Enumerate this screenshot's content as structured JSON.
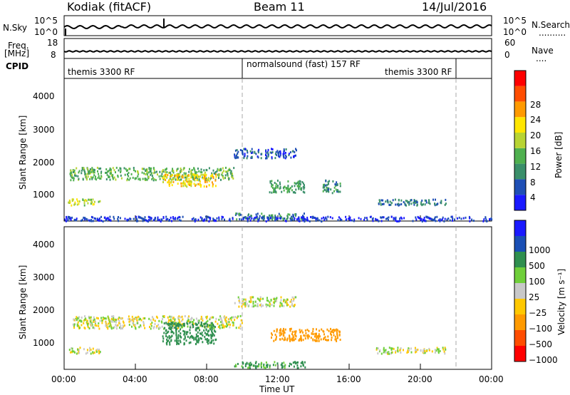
{
  "header": {
    "site": "Kodiak (fitACF)",
    "beam": "Beam 11",
    "date": "14/Jul/2016"
  },
  "side_labels": {
    "nsky": "N.Sky",
    "nsearch": "N.Search",
    "nsearch_dots": "..........",
    "freq": "Freq.",
    "mhz": "[MHz]",
    "nave": "Nave",
    "nave_dots": "....",
    "cpid": "CPID"
  },
  "noise_panel": {
    "left_ticks": [
      "10^5",
      "10^0"
    ],
    "right_ticks": [
      "10^5",
      "10^0"
    ]
  },
  "freq_panel": {
    "left_ticks": [
      "18",
      "8"
    ],
    "right_ticks": [
      "60",
      "0"
    ]
  },
  "cpid_panel": {
    "segments": [
      {
        "label": "themis 3300 RF",
        "start_h": 0,
        "end_h": 10
      },
      {
        "label": "normalsound (fast) 157 RF",
        "start_h": 10,
        "end_h": 22
      },
      {
        "label": "themis 3300 RF",
        "start_h": 22,
        "end_h": 24
      }
    ]
  },
  "x_axis": {
    "label": "Time UT",
    "ticks": [
      "00:00",
      "04:00",
      "08:00",
      "12:00",
      "16:00",
      "20:00",
      "00:00"
    ]
  },
  "colors": {
    "power_scale": [
      "#1a1aff",
      "#1f4fb5",
      "#3a8f6a",
      "#4fb04f",
      "#b8d433",
      "#ffe600",
      "#ff9a00",
      "#ff4d00",
      "#ff0000"
    ],
    "velocity_scale": [
      "#ff0000",
      "#ff4d00",
      "#ff9a00",
      "#ffc800",
      "#c8c8c8",
      "#6fcf3a",
      "#2f8f4f",
      "#1a4fb5",
      "#1a1aff"
    ]
  },
  "chart_data": [
    {
      "type": "heatmap",
      "title": "Power",
      "xlabel": "Time UT",
      "ylabel": "Slant Range [km]",
      "xlim": [
        0,
        24
      ],
      "ylim": [
        180,
        4700
      ],
      "y_ticks": [
        "1000",
        "2000",
        "3000",
        "4000"
      ],
      "colorbar": {
        "label": "Power [dB]",
        "range": [
          0,
          32
        ],
        "ticks": [
          "4",
          "8",
          "12",
          "16",
          "20",
          "24",
          "28"
        ]
      },
      "regions": [
        {
          "t": [
            0.3,
            9.5
          ],
          "r": [
            1500,
            1900
          ],
          "value": 14
        },
        {
          "t": [
            5.5,
            8.5
          ],
          "r": [
            1300,
            1700
          ],
          "value": 22
        },
        {
          "t": [
            0.2,
            2.0
          ],
          "r": [
            700,
            900
          ],
          "value": 18
        },
        {
          "t": [
            9.5,
            13.0
          ],
          "r": [
            2200,
            2500
          ],
          "value": 6
        },
        {
          "t": [
            11.5,
            13.5
          ],
          "r": [
            1100,
            1500
          ],
          "value": 12
        },
        {
          "t": [
            14.5,
            15.5
          ],
          "r": [
            1100,
            1500
          ],
          "value": 10
        },
        {
          "t": [
            17.5,
            21.5
          ],
          "r": [
            700,
            900
          ],
          "value": 8
        },
        {
          "t": [
            9.5,
            13.5
          ],
          "r": [
            250,
            450
          ],
          "value": 10
        },
        {
          "t": [
            0,
            24
          ],
          "r": [
            200,
            350
          ],
          "value": 4
        }
      ]
    },
    {
      "type": "heatmap",
      "title": "Velocity",
      "xlabel": "Time UT",
      "ylabel": "Slant Range [km]",
      "xlim": [
        0,
        24
      ],
      "ylim": [
        180,
        4700
      ],
      "y_ticks": [
        "1000",
        "2000",
        "3000",
        "4000"
      ],
      "colorbar": {
        "label": "Velocity [m s^-1]",
        "ticks": [
          "1000",
          "500",
          "100",
          "25",
          "−25",
          "−100",
          "−500",
          "−1000"
        ]
      },
      "regions": [
        {
          "t": [
            0.3,
            10.0
          ],
          "r": [
            1500,
            1900
          ],
          "value": 0
        },
        {
          "t": [
            5.5,
            8.5
          ],
          "r": [
            1000,
            1700
          ],
          "value": 300
        },
        {
          "t": [
            9.5,
            13.0
          ],
          "r": [
            2200,
            2500
          ],
          "value": 0
        },
        {
          "t": [
            11.5,
            15.5
          ],
          "r": [
            1100,
            1500
          ],
          "value": -300
        },
        {
          "t": [
            0.2,
            2.0
          ],
          "r": [
            700,
            900
          ],
          "value": 0
        },
        {
          "t": [
            17.5,
            21.5
          ],
          "r": [
            700,
            900
          ],
          "value": 0
        },
        {
          "t": [
            9.5,
            13.5
          ],
          "r": [
            250,
            450
          ],
          "value": 150
        }
      ]
    }
  ]
}
